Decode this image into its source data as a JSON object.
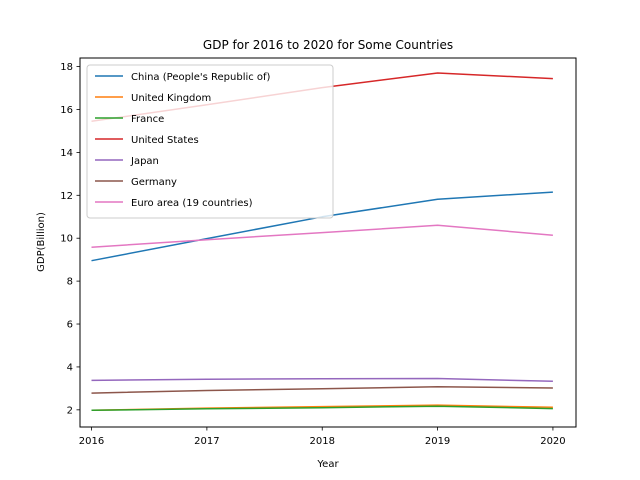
{
  "chart_data": {
    "type": "line",
    "title": "GDP for 2016 to 2020 for Some Countries",
    "xlabel": "Year",
    "ylabel": "GDP(Billion)",
    "x": [
      2016,
      2017,
      2018,
      2019,
      2020
    ],
    "xlim": [
      2015.9,
      2020.2
    ],
    "ylim": [
      1.2,
      18.4
    ],
    "yticks": [
      2,
      4,
      6,
      8,
      10,
      12,
      14,
      16,
      18
    ],
    "grid": false,
    "legend_position": "top-left",
    "series": [
      {
        "name": "China (People's Republic of)",
        "color": "#1f77b4",
        "values": [
          8.95,
          9.98,
          11.0,
          11.82,
          12.15
        ]
      },
      {
        "name": "United Kingdom",
        "color": "#ff7f0e",
        "values": [
          1.98,
          2.08,
          2.15,
          2.22,
          2.12
        ]
      },
      {
        "name": "France",
        "color": "#2ca02c",
        "values": [
          1.98,
          2.05,
          2.1,
          2.17,
          2.06
        ]
      },
      {
        "name": "United States",
        "color": "#d62728",
        "values": [
          15.45,
          16.22,
          17.02,
          17.7,
          17.44
        ]
      },
      {
        "name": "Japan",
        "color": "#9467bd",
        "values": [
          3.37,
          3.43,
          3.45,
          3.46,
          3.33
        ]
      },
      {
        "name": "Germany",
        "color": "#8c564b",
        "values": [
          2.78,
          2.9,
          2.98,
          3.08,
          3.02
        ]
      },
      {
        "name": "Euro area (19 countries)",
        "color": "#e377c2",
        "values": [
          9.58,
          9.93,
          10.26,
          10.6,
          10.14
        ]
      }
    ]
  }
}
